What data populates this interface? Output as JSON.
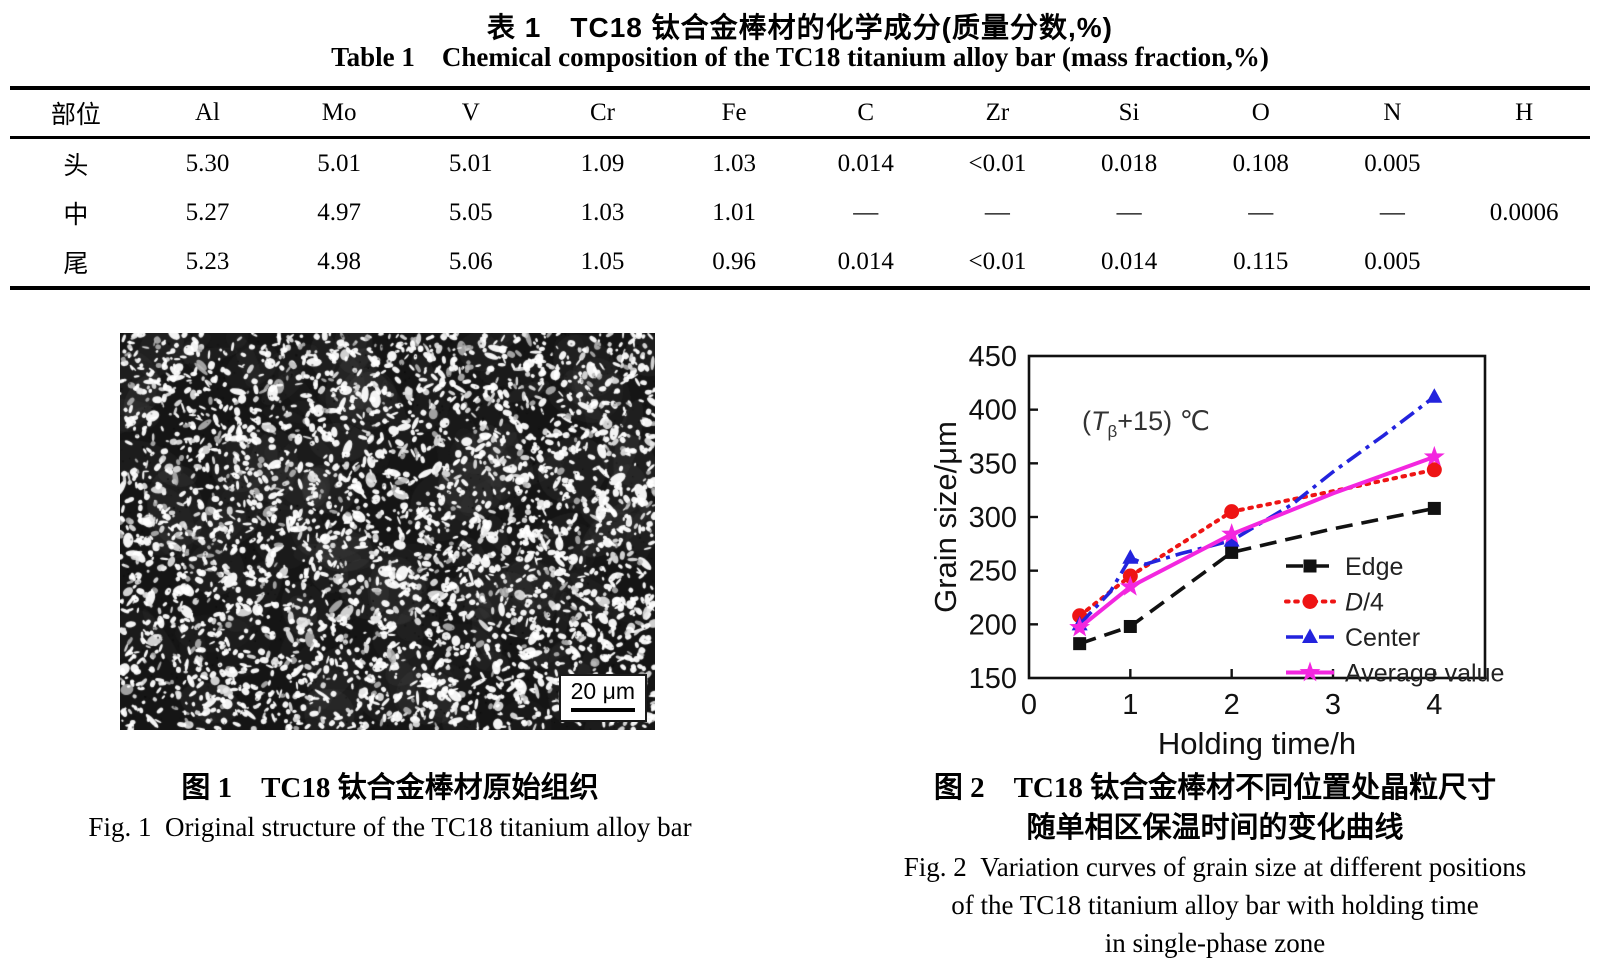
{
  "page": {
    "title_zh": "表 1　TC18 钛合金棒材的化学成分(质量分数,%)",
    "title_en": "Table 1 Chemical composition of the TC18 titanium alloy bar (mass fraction,%)"
  },
  "table": {
    "columns": [
      "部位",
      "Al",
      "Mo",
      "V",
      "Cr",
      "Fe",
      "C",
      "Zr",
      "Si",
      "O",
      "N",
      "H"
    ],
    "rows": [
      [
        "头",
        "5.30",
        "5.01",
        "5.01",
        "1.09",
        "1.03",
        "0.014",
        "<0.01",
        "0.018",
        "0.108",
        "0.005",
        ""
      ],
      [
        "中",
        "5.27",
        "4.97",
        "5.05",
        "1.03",
        "1.01",
        "—",
        "—",
        "—",
        "—",
        "—",
        "0.0006"
      ],
      [
        "尾",
        "5.23",
        "4.98",
        "5.06",
        "1.05",
        "0.96",
        "0.014",
        "<0.01",
        "0.014",
        "0.115",
        "0.005",
        ""
      ]
    ]
  },
  "figure1": {
    "scale_label": "20 μm",
    "caption_zh": "图 1　TC18 钛合金棒材原始组织",
    "caption_en": "Fig. 1 Original structure of the TC18 titanium alloy bar"
  },
  "figure2": {
    "caption_zh_line1": "图 2　TC18 钛合金棒材不同位置处晶粒尺寸",
    "caption_zh_line2": "随单相区保温时间的变化曲线",
    "caption_en_line1": "Fig. 2 Variation curves of grain size at different positions",
    "caption_en_line2": "of the TC18 titanium alloy bar with holding time",
    "caption_en_line3": "in single-phase zone"
  },
  "chart_data": {
    "type": "line",
    "title": "",
    "xlabel": "Holding time/h",
    "ylabel": "Grain size/μm",
    "xlim": [
      0,
      4.5
    ],
    "ylim": [
      150,
      450
    ],
    "xticks": [
      0,
      1,
      2,
      3,
      4
    ],
    "yticks": [
      150,
      200,
      250,
      300,
      350,
      400,
      450
    ],
    "grid": "off",
    "legend_position": "inside lower right",
    "annotation_parts": [
      {
        "t": "("
      },
      {
        "t": "T",
        "style": "italic"
      },
      {
        "t": "β",
        "style": "sub"
      },
      {
        "t": "+15) ℃"
      }
    ],
    "series": [
      {
        "name": "Edge",
        "label_parts": [
          {
            "t": "Edge"
          }
        ],
        "color": "#111111",
        "line": "dashed",
        "marker": "square",
        "x": [
          0.5,
          1,
          2,
          4
        ],
        "y": [
          182,
          198,
          267,
          308
        ],
        "line_x": [
          0.5,
          1,
          2,
          3,
          4
        ],
        "line_y": [
          182,
          198,
          267,
          289,
          308
        ]
      },
      {
        "name": "D/4",
        "label_parts": [
          {
            "t": "D",
            "style": "italic"
          },
          {
            "t": "/4"
          }
        ],
        "color": "#ee1414",
        "line": "dotted",
        "marker": "circle",
        "x": [
          0.5,
          1,
          2,
          4
        ],
        "y": [
          208,
          245,
          305,
          344
        ],
        "line_x": [
          0.5,
          1,
          2,
          3,
          4
        ],
        "line_y": [
          208,
          245,
          305,
          324,
          344
        ]
      },
      {
        "name": "Center",
        "label_parts": [
          {
            "t": "Center"
          }
        ],
        "color": "#2323dd",
        "line": "dashdot",
        "marker": "triangle",
        "x": [
          0.5,
          1,
          2,
          4
        ],
        "y": [
          200,
          262,
          278,
          412
        ],
        "line_x": [
          0.5,
          0.8,
          1,
          1.15,
          1.5,
          2,
          2.6,
          3,
          3.5,
          4
        ],
        "line_y": [
          200,
          230,
          262,
          256,
          266,
          278,
          312,
          342,
          376,
          412
        ]
      },
      {
        "name": "Average value",
        "label_parts": [
          {
            "t": "Average value"
          }
        ],
        "color": "#f326df",
        "line": "solid",
        "marker": "star",
        "x": [
          0.5,
          1,
          2,
          4
        ],
        "y": [
          197,
          235,
          284,
          356
        ],
        "line_x": [
          0.5,
          1,
          2,
          3,
          4
        ],
        "line_y": [
          197,
          235,
          284,
          322,
          356
        ]
      }
    ]
  }
}
